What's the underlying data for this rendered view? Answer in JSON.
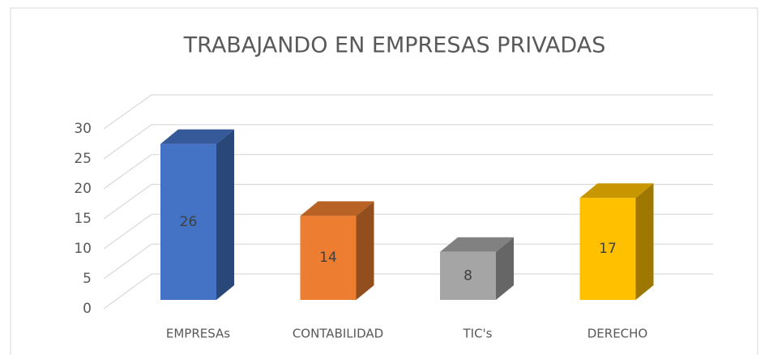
{
  "chart_data": {
    "type": "bar3d",
    "title": "TRABAJANDO EN EMPRESAS PRIVADAS",
    "categories": [
      "EMPRESAs",
      "CONTABILIDAD",
      "TIC's",
      "DERECHO"
    ],
    "values": [
      26,
      14,
      8,
      17
    ],
    "colors": [
      "#4472c4",
      "#ed7d31",
      "#a5a5a5",
      "#ffc000"
    ],
    "ylim": [
      0,
      30
    ],
    "yticks": [
      0,
      5,
      10,
      15,
      20,
      25,
      30
    ],
    "grid": true
  }
}
